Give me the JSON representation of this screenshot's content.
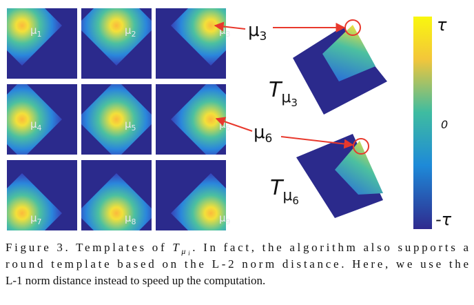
{
  "figure": {
    "tiles": [
      {
        "symbol": "μ",
        "index": "1"
      },
      {
        "symbol": "μ",
        "index": "2"
      },
      {
        "symbol": "μ",
        "index": "3"
      },
      {
        "symbol": "μ",
        "index": "4"
      },
      {
        "symbol": "μ",
        "index": "5"
      },
      {
        "symbol": "μ",
        "index": "6"
      },
      {
        "symbol": "μ",
        "index": "7"
      },
      {
        "symbol": "μ",
        "index": "8"
      },
      {
        "symbol": "μ",
        "index": "9"
      }
    ],
    "callouts": [
      {
        "symbol": "μ",
        "index": "3",
        "template": "T",
        "template_sub": "μ",
        "template_subsub": "3"
      },
      {
        "symbol": "μ",
        "index": "6",
        "template": "T",
        "template_sub": "μ",
        "template_subsub": "6"
      }
    ],
    "colorbar": {
      "top": "τ",
      "middle": "0",
      "bottom": "-τ"
    }
  },
  "caption": {
    "line1_a": "Figure 3. Templates of ",
    "math_base": "T",
    "math_sub": "μ",
    "math_subsub": "i",
    "line1_b": ". In fact, the algorithm also supports a",
    "line2": "round template based on the L-2 norm distance. Here, we use the",
    "line3": "L-1 norm distance instead to speed up the computation."
  }
}
